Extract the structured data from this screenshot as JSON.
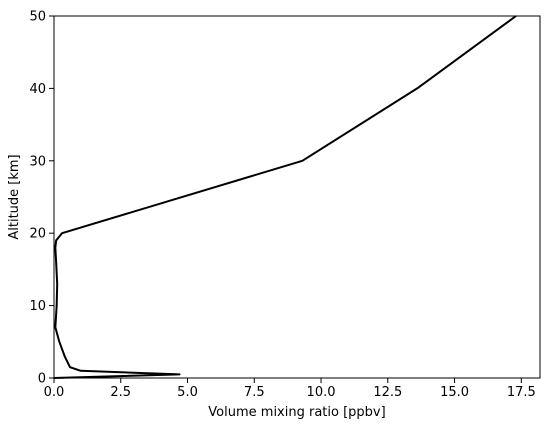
{
  "chart_data": {
    "type": "line",
    "xlabel": "Volume mixing ratio [ppbv]",
    "ylabel": "Altitude [km]",
    "xlim": [
      0.0,
      18.2
    ],
    "ylim": [
      0,
      50
    ],
    "xticks": [
      "0.0",
      "2.5",
      "5.0",
      "7.5",
      "10.0",
      "12.5",
      "15.0",
      "17.5"
    ],
    "xtick_values": [
      0.0,
      2.5,
      5.0,
      7.5,
      10.0,
      12.5,
      15.0,
      17.5
    ],
    "yticks": [
      "0",
      "10",
      "20",
      "30",
      "40",
      "50"
    ],
    "ytick_values": [
      0,
      10,
      20,
      30,
      40,
      50
    ],
    "grid": false,
    "series": [
      {
        "color": "#000000",
        "points": [
          {
            "x": 0.0,
            "y": 0.0
          },
          {
            "x": 4.7,
            "y": 0.5
          },
          {
            "x": 1.0,
            "y": 1.0
          },
          {
            "x": 0.6,
            "y": 1.5
          },
          {
            "x": 0.4,
            "y": 3.0
          },
          {
            "x": 0.2,
            "y": 5.0
          },
          {
            "x": 0.05,
            "y": 7.0
          },
          {
            "x": 0.1,
            "y": 10.0
          },
          {
            "x": 0.12,
            "y": 13.0
          },
          {
            "x": 0.08,
            "y": 16.0
          },
          {
            "x": 0.05,
            "y": 18.0
          },
          {
            "x": 0.08,
            "y": 19.0
          },
          {
            "x": 0.3,
            "y": 20.0
          },
          {
            "x": 9.3,
            "y": 30.0
          },
          {
            "x": 13.6,
            "y": 40.0
          },
          {
            "x": 17.3,
            "y": 50.0
          }
        ]
      }
    ]
  }
}
